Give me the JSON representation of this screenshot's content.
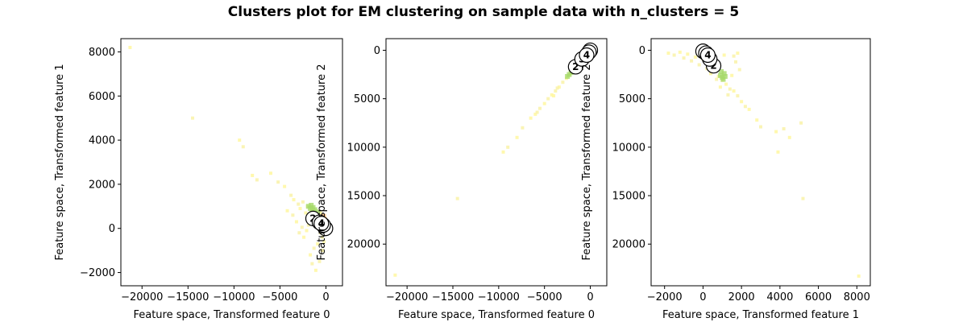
{
  "title": "Clusters plot for EM clustering on sample data with n_clusters = 5",
  "colors": {
    "points": [
      "#fff7a0",
      "#f9f2a8",
      "#98d494",
      "#f4a582",
      "#e8f59a"
    ],
    "dense_green": "#a6d96a",
    "dense_orange": "#fdae61",
    "center_fill": "#ffffff",
    "center_stroke": "#000000"
  },
  "chart_data": [
    {
      "type": "scatter",
      "xlabel": "Feature space, Transformed feature 0",
      "ylabel": "Feature space, Transformed feature 1",
      "xlim": [
        -22300,
        1800
      ],
      "ylim": [
        -2600,
        8600
      ],
      "xticks": [
        -20000,
        -15000,
        -10000,
        -5000,
        0
      ],
      "xtick_labels": [
        "−20000",
        "−15000",
        "−10000",
        "−5000",
        "0"
      ],
      "yticks": [
        -2000,
        0,
        2000,
        4000,
        6000,
        8000
      ],
      "ytick_labels": [
        "−2000",
        "0",
        "2000",
        "4000",
        "6000",
        "8000"
      ],
      "centers": [
        {
          "label": "0",
          "x": -50,
          "y": 0
        },
        {
          "label": "1",
          "x": -300,
          "y": 150
        },
        {
          "label": "2",
          "x": -1400,
          "y": 450
        },
        {
          "label": "3",
          "x": -700,
          "y": 280
        },
        {
          "label": "4",
          "x": -500,
          "y": 220
        }
      ],
      "points": [
        [
          -21300,
          8200
        ],
        [
          -14500,
          5000
        ],
        [
          -9400,
          4000
        ],
        [
          -9000,
          3700
        ],
        [
          -8000,
          2400
        ],
        [
          -7500,
          2200
        ],
        [
          -6000,
          2500
        ],
        [
          -5200,
          2100
        ],
        [
          -4500,
          1900
        ],
        [
          -3800,
          1500
        ],
        [
          -3500,
          1300
        ],
        [
          -3000,
          1100
        ],
        [
          -4200,
          800
        ],
        [
          -3600,
          600
        ],
        [
          -2800,
          900
        ],
        [
          -2500,
          1200
        ],
        [
          -2200,
          700
        ],
        [
          -2000,
          1000
        ],
        [
          -1800,
          400
        ],
        [
          -1600,
          600
        ],
        [
          -1400,
          200
        ],
        [
          -1200,
          500
        ],
        [
          -1000,
          300
        ],
        [
          -800,
          100
        ],
        [
          -600,
          -200
        ],
        [
          -400,
          -400
        ],
        [
          -900,
          -700
        ],
        [
          -1300,
          -900
        ],
        [
          -1700,
          -1200
        ],
        [
          -1500,
          -1600
        ],
        [
          -1100,
          -1900
        ],
        [
          -700,
          -1500
        ],
        [
          -400,
          -1000
        ],
        [
          -200,
          -600
        ],
        [
          -2400,
          -400
        ],
        [
          -2900,
          -200
        ],
        [
          -3200,
          300
        ],
        [
          -2600,
          50
        ],
        [
          -2100,
          -100
        ],
        [
          -1900,
          150
        ],
        [
          -600,
          700
        ],
        [
          -300,
          400
        ]
      ],
      "green_points": [
        [
          -1900,
          1000
        ],
        [
          -1700,
          900
        ],
        [
          -1500,
          800
        ],
        [
          -1300,
          700
        ],
        [
          -1100,
          650
        ],
        [
          -1000,
          500
        ],
        [
          -1600,
          1050
        ],
        [
          -1400,
          950
        ],
        [
          -1200,
          850
        ],
        [
          -900,
          750
        ]
      ],
      "orange_points": [
        [
          -300,
          450
        ],
        [
          -200,
          300
        ],
        [
          -100,
          150
        ],
        [
          -250,
          550
        ],
        [
          -150,
          400
        ]
      ]
    },
    {
      "type": "scatter",
      "xlabel": "Feature space, Transformed feature 0",
      "ylabel": "Feature space, Transformed feature 2",
      "xlim": [
        -22300,
        1800
      ],
      "ylim": [
        -24300,
        1200
      ],
      "xticks": [
        -20000,
        -15000,
        -10000,
        -5000,
        0
      ],
      "xtick_labels": [
        "−20000",
        "−15000",
        "−10000",
        "−5000",
        "0"
      ],
      "yticks": [
        0,
        -5000,
        -10000,
        -15000,
        -20000
      ],
      "ytick_labels": [
        "0",
        "5000",
        "10000",
        "15000",
        "20000"
      ],
      "centers": [
        {
          "label": "0",
          "x": 0,
          "y": 0
        },
        {
          "label": "1",
          "x": -150,
          "y": -200
        },
        {
          "label": "2",
          "x": -1600,
          "y": -1700
        },
        {
          "label": "3",
          "x": -900,
          "y": -900
        },
        {
          "label": "4",
          "x": -400,
          "y": -500
        }
      ],
      "points": [
        [
          -21300,
          -23200
        ],
        [
          -14500,
          -15300
        ],
        [
          -9500,
          -10500
        ],
        [
          -9000,
          -10000
        ],
        [
          -8000,
          -9000
        ],
        [
          -7400,
          -8000
        ],
        [
          -6000,
          -6600
        ],
        [
          -5500,
          -6000
        ],
        [
          -5000,
          -5500
        ],
        [
          -4600,
          -5000
        ],
        [
          -4200,
          -4600
        ],
        [
          -3800,
          -4200
        ],
        [
          -3400,
          -3800
        ],
        [
          -3000,
          -3300
        ],
        [
          -2600,
          -2900
        ],
        [
          -2300,
          -2600
        ],
        [
          -2100,
          -2300
        ],
        [
          -1900,
          -2100
        ],
        [
          -6500,
          -7000
        ],
        [
          -5800,
          -6400
        ],
        [
          -4000,
          -4700
        ],
        [
          -3600,
          -3900
        ]
      ],
      "green_points": [
        [
          -2500,
          -2700
        ],
        [
          -2300,
          -2500
        ],
        [
          -2100,
          -2300
        ],
        [
          -2000,
          -2100
        ],
        [
          -1800,
          -2000
        ],
        [
          -1700,
          -1900
        ]
      ],
      "orange_points": [
        [
          -300,
          -300
        ],
        [
          -200,
          -200
        ],
        [
          -100,
          -150
        ]
      ]
    },
    {
      "type": "scatter",
      "xlabel": "Feature space, Transformed feature 1",
      "ylabel": "Feature space, Transformed feature 2",
      "xlim": [
        -2700,
        8700
      ],
      "ylim": [
        -24300,
        1200
      ],
      "xticks": [
        -2000,
        0,
        2000,
        4000,
        6000,
        8000
      ],
      "xtick_labels": [
        "−2000",
        "0",
        "2000",
        "4000",
        "6000",
        "8000"
      ],
      "yticks": [
        0,
        -5000,
        -10000,
        -15000,
        -20000
      ],
      "ytick_labels": [
        "0",
        "5000",
        "10000",
        "15000",
        "20000"
      ],
      "centers": [
        {
          "label": "0",
          "x": 0,
          "y": -100
        },
        {
          "label": "1",
          "x": 150,
          "y": -300
        },
        {
          "label": "2",
          "x": 550,
          "y": -1600
        },
        {
          "label": "3",
          "x": 350,
          "y": -900
        },
        {
          "label": "4",
          "x": 250,
          "y": -500
        }
      ],
      "points": [
        [
          -1800,
          -300
        ],
        [
          -1500,
          -500
        ],
        [
          -1200,
          -200
        ],
        [
          -1000,
          -800
        ],
        [
          -800,
          -400
        ],
        [
          -600,
          -1100
        ],
        [
          -400,
          -700
        ],
        [
          -200,
          -1500
        ],
        [
          0,
          -900
        ],
        [
          200,
          -1900
        ],
        [
          400,
          -2400
        ],
        [
          600,
          -2200
        ],
        [
          800,
          -2700
        ],
        [
          1000,
          -3100
        ],
        [
          1200,
          -3500
        ],
        [
          1400,
          -4000
        ],
        [
          1600,
          -4200
        ],
        [
          1800,
          -4700
        ],
        [
          2000,
          -5300
        ],
        [
          2200,
          -5800
        ],
        [
          2400,
          -6100
        ],
        [
          1300,
          -4600
        ],
        [
          900,
          -3800
        ],
        [
          700,
          -3000
        ],
        [
          1500,
          -2600
        ],
        [
          1700,
          -1200
        ],
        [
          1100,
          -500
        ],
        [
          1900,
          -2000
        ],
        [
          2800,
          -7200
        ],
        [
          3000,
          -7900
        ],
        [
          3800,
          -8400
        ],
        [
          4200,
          -8100
        ],
        [
          4500,
          -9000
        ],
        [
          5100,
          -7500
        ],
        [
          3900,
          -10500
        ],
        [
          5200,
          -15300
        ],
        [
          8100,
          -23300
        ],
        [
          1600,
          -600
        ],
        [
          1800,
          -300
        ]
      ],
      "green_points": [
        [
          900,
          -2600
        ],
        [
          1000,
          -2800
        ],
        [
          1100,
          -2400
        ],
        [
          950,
          -2200
        ],
        [
          1050,
          -3000
        ],
        [
          1150,
          -2700
        ]
      ],
      "orange_points": [
        [
          300,
          -300
        ],
        [
          450,
          -450
        ],
        [
          200,
          -200
        ]
      ]
    }
  ]
}
